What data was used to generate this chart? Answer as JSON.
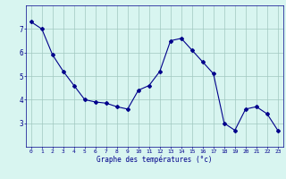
{
  "hours": [
    0,
    1,
    2,
    3,
    4,
    5,
    6,
    7,
    8,
    9,
    10,
    11,
    12,
    13,
    14,
    15,
    16,
    17,
    18,
    19,
    20,
    21,
    22,
    23
  ],
  "temps": [
    7.3,
    7.0,
    5.9,
    5.2,
    4.6,
    4.0,
    3.9,
    3.85,
    3.7,
    3.6,
    4.4,
    4.6,
    5.2,
    6.5,
    6.6,
    6.1,
    5.6,
    5.1,
    3.0,
    2.7,
    3.6,
    3.7,
    3.4,
    2.7
  ],
  "line_color": "#00008b",
  "marker": "D",
  "marker_size": 2,
  "bg_color": "#d8f5f0",
  "grid_color": "#a0c8c0",
  "axis_label_color": "#00008b",
  "title": "Graphe des températures (°c)",
  "ylim": [
    2.0,
    8.0
  ],
  "yticks": [
    3,
    4,
    5,
    6,
    7
  ],
  "xlim": [
    -0.5,
    23.5
  ],
  "xticks": [
    0,
    1,
    2,
    3,
    4,
    5,
    6,
    7,
    8,
    9,
    10,
    11,
    12,
    13,
    14,
    15,
    16,
    17,
    18,
    19,
    20,
    21,
    22,
    23
  ]
}
